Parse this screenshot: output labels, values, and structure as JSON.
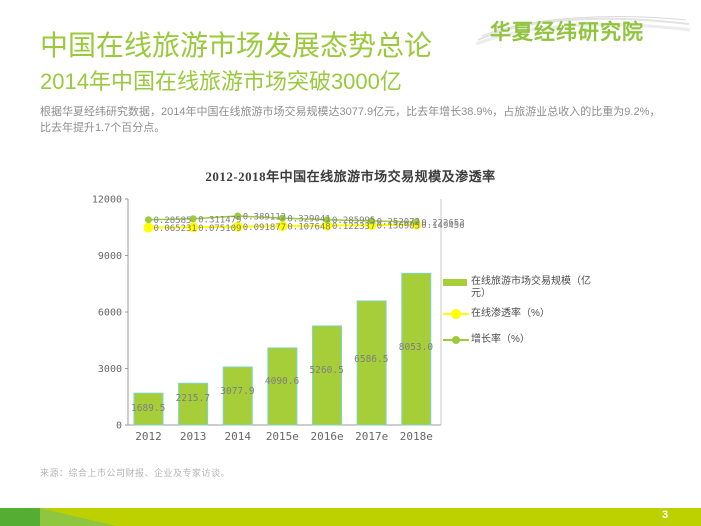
{
  "logo": {
    "text": "华夏经纬研究院"
  },
  "header": {
    "title": "中国在线旅游市场发展态势总论",
    "subtitle": "2014年中国在线旅游市场突破3000亿",
    "body": "根据华夏经纬研究数据，2014年中国在线旅游市场交易规模达3077.9亿元，比去年增长38.9%，占旅游业总收入的比重为9.2%，比去年提升1.7个百分点。"
  },
  "chart_data": {
    "type": "combo",
    "title": "2012-2018年中国在线旅游市场交易规模及渗透率",
    "categories": [
      "2012",
      "2013",
      "2014",
      "2015e",
      "2016e",
      "2017e",
      "2018e"
    ],
    "series": [
      {
        "name": "在线旅游市场交易规模（亿元）",
        "type": "bar",
        "axis": "left",
        "values": [
          1689.5,
          2215.7,
          3077.9,
          4090.6,
          5260.5,
          6586.5,
          8053.0
        ],
        "labels": [
          "1689.5",
          "2215.7",
          "3077.9",
          "4090.6",
          "5260.5",
          "6586.5",
          "8053.0"
        ],
        "color": "#A5CE39"
      },
      {
        "name": "在线渗透率（%）",
        "type": "line",
        "axis": "right",
        "values": [
          0.065231,
          0.075109,
          0.091877,
          0.107648,
          0.122337,
          0.136905,
          0.149456
        ],
        "labels": [
          "0.065231",
          "0.075109",
          "0.091877",
          "0.107648",
          "0.122337",
          "0.136905",
          "0.149456"
        ],
        "color": "#FFFF00"
      },
      {
        "name": "增长率（%）",
        "type": "line",
        "axis": "right",
        "values": [
          0.28585,
          0.311479,
          0.389112,
          0.329041,
          0.285995,
          0.252072,
          0.222653
        ],
        "labels": [
          "0.28585",
          "0.311479",
          "0.389112",
          "0.329041",
          "0.285995",
          "0.252072",
          "0.222653"
        ],
        "color": "#9CCB3B"
      }
    ],
    "y_axis": {
      "ticks": [
        0,
        3000,
        6000,
        9000,
        12000
      ],
      "min": 0,
      "max": 12000
    },
    "grid": false,
    "legend_position": "right"
  },
  "source": {
    "text": "来源：综合上市公司财报、企业及专家访谈。"
  },
  "footer": {
    "page_number": "3"
  },
  "colors": {
    "accent_green": "#9ACA3C",
    "bar_fill": "#A5CE39",
    "bar_border": "#7FD4C8",
    "line_yellow": "#FFFF00",
    "line_green": "#9CCB3B",
    "axis_gray": "#9B9B9B",
    "label_gray": "#7F7F7F",
    "footer_bar": "#BDD000",
    "footer_green": "#55AE33",
    "footer_wedge": "#8EC640"
  }
}
